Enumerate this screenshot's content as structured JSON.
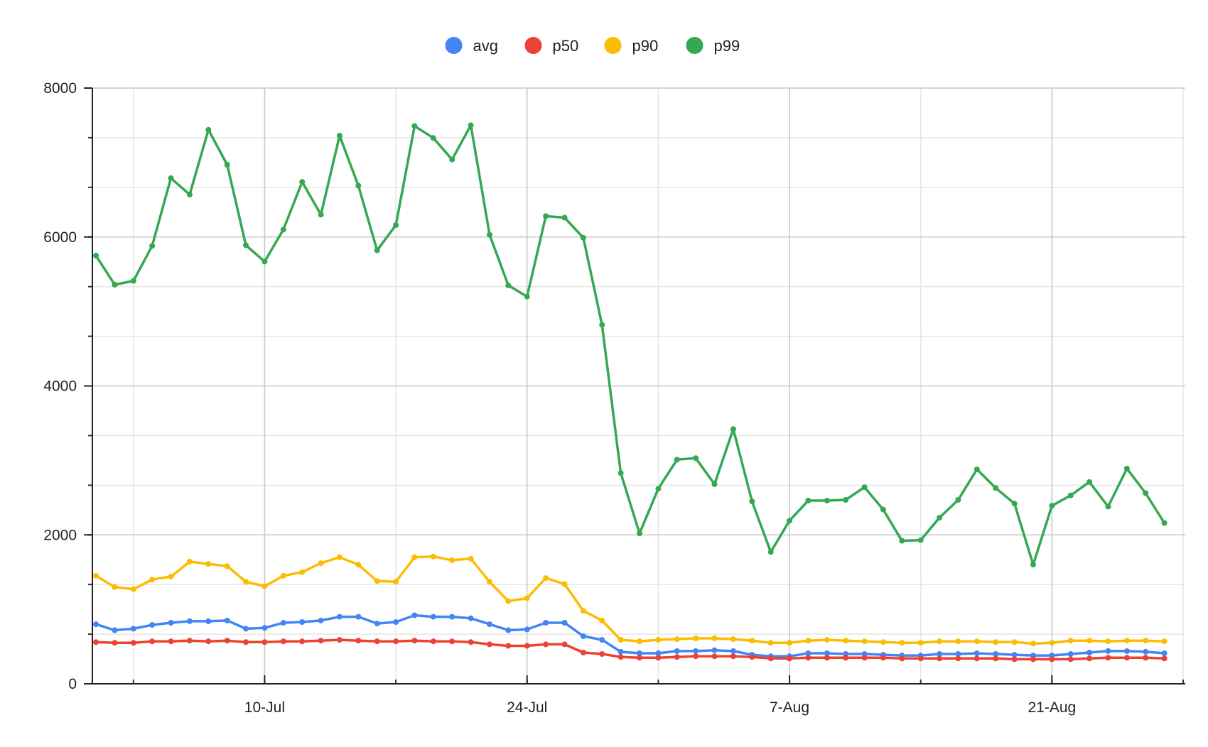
{
  "chart_data": {
    "type": "line",
    "title": "",
    "xlabel": "",
    "ylabel": "",
    "x_start": "2023-07-01",
    "x_step_days": 1,
    "xlim": [
      "2023-07-01",
      "2023-08-28"
    ],
    "ylim": [
      0,
      8000
    ],
    "x_ticks": [
      {
        "date": "2023-07-10",
        "label": "10-Jul"
      },
      {
        "date": "2023-07-24",
        "label": "24-Jul"
      },
      {
        "date": "2023-08-07",
        "label": "7-Aug"
      },
      {
        "date": "2023-08-21",
        "label": "21-Aug"
      }
    ],
    "y_ticks": [
      {
        "value": 0,
        "label": "0"
      },
      {
        "value": 2000,
        "label": "2000"
      },
      {
        "value": 4000,
        "label": "4000"
      },
      {
        "value": 6000,
        "label": "6000"
      },
      {
        "value": 8000,
        "label": "8000"
      }
    ],
    "grid": true,
    "legend_position": "top-center",
    "series": [
      {
        "name": "avg",
        "color": "#4285F4",
        "values": [
          800,
          720,
          740,
          790,
          820,
          840,
          840,
          850,
          740,
          750,
          820,
          830,
          850,
          900,
          900,
          810,
          830,
          920,
          900,
          900,
          880,
          800,
          720,
          730,
          820,
          820,
          640,
          590,
          430,
          410,
          410,
          440,
          440,
          450,
          440,
          390,
          370,
          370,
          410,
          410,
          400,
          400,
          390,
          380,
          380,
          400,
          400,
          410,
          400,
          390,
          380,
          380,
          400,
          420,
          440,
          440,
          430,
          410
        ]
      },
      {
        "name": "p50",
        "color": "#EA4335",
        "values": [
          560,
          550,
          550,
          570,
          570,
          580,
          570,
          580,
          560,
          560,
          570,
          570,
          580,
          590,
          580,
          570,
          570,
          580,
          570,
          570,
          560,
          530,
          510,
          510,
          530,
          530,
          420,
          400,
          360,
          350,
          350,
          360,
          370,
          370,
          370,
          360,
          340,
          340,
          350,
          350,
          350,
          350,
          350,
          340,
          340,
          340,
          340,
          340,
          340,
          330,
          330,
          330,
          330,
          340,
          350,
          350,
          350,
          340
        ]
      },
      {
        "name": "p90",
        "color": "#FBBC04",
        "values": [
          1450,
          1300,
          1270,
          1400,
          1440,
          1640,
          1610,
          1580,
          1370,
          1310,
          1450,
          1500,
          1620,
          1700,
          1600,
          1380,
          1370,
          1700,
          1710,
          1660,
          1680,
          1370,
          1110,
          1150,
          1420,
          1340,
          980,
          850,
          590,
          570,
          590,
          600,
          610,
          610,
          600,
          580,
          550,
          550,
          580,
          590,
          580,
          570,
          560,
          550,
          550,
          570,
          570,
          570,
          560,
          560,
          540,
          550,
          580,
          580,
          570,
          580,
          580,
          570
        ]
      },
      {
        "name": "p99",
        "color": "#34A853",
        "values": [
          5750,
          5360,
          5410,
          5880,
          6790,
          6570,
          7440,
          6970,
          5890,
          5670,
          6100,
          6740,
          6300,
          7360,
          6690,
          5820,
          6160,
          7490,
          7330,
          7040,
          7500,
          6030,
          5350,
          5200,
          6280,
          6260,
          5990,
          4820,
          2830,
          2020,
          2620,
          3010,
          3030,
          2680,
          3420,
          2450,
          1770,
          2190,
          2460,
          2460,
          2470,
          2640,
          2340,
          1920,
          1930,
          2230,
          2470,
          2880,
          2630,
          2420,
          1600,
          2390,
          2530,
          2710,
          2380,
          2890,
          2560,
          2160
        ]
      }
    ]
  }
}
